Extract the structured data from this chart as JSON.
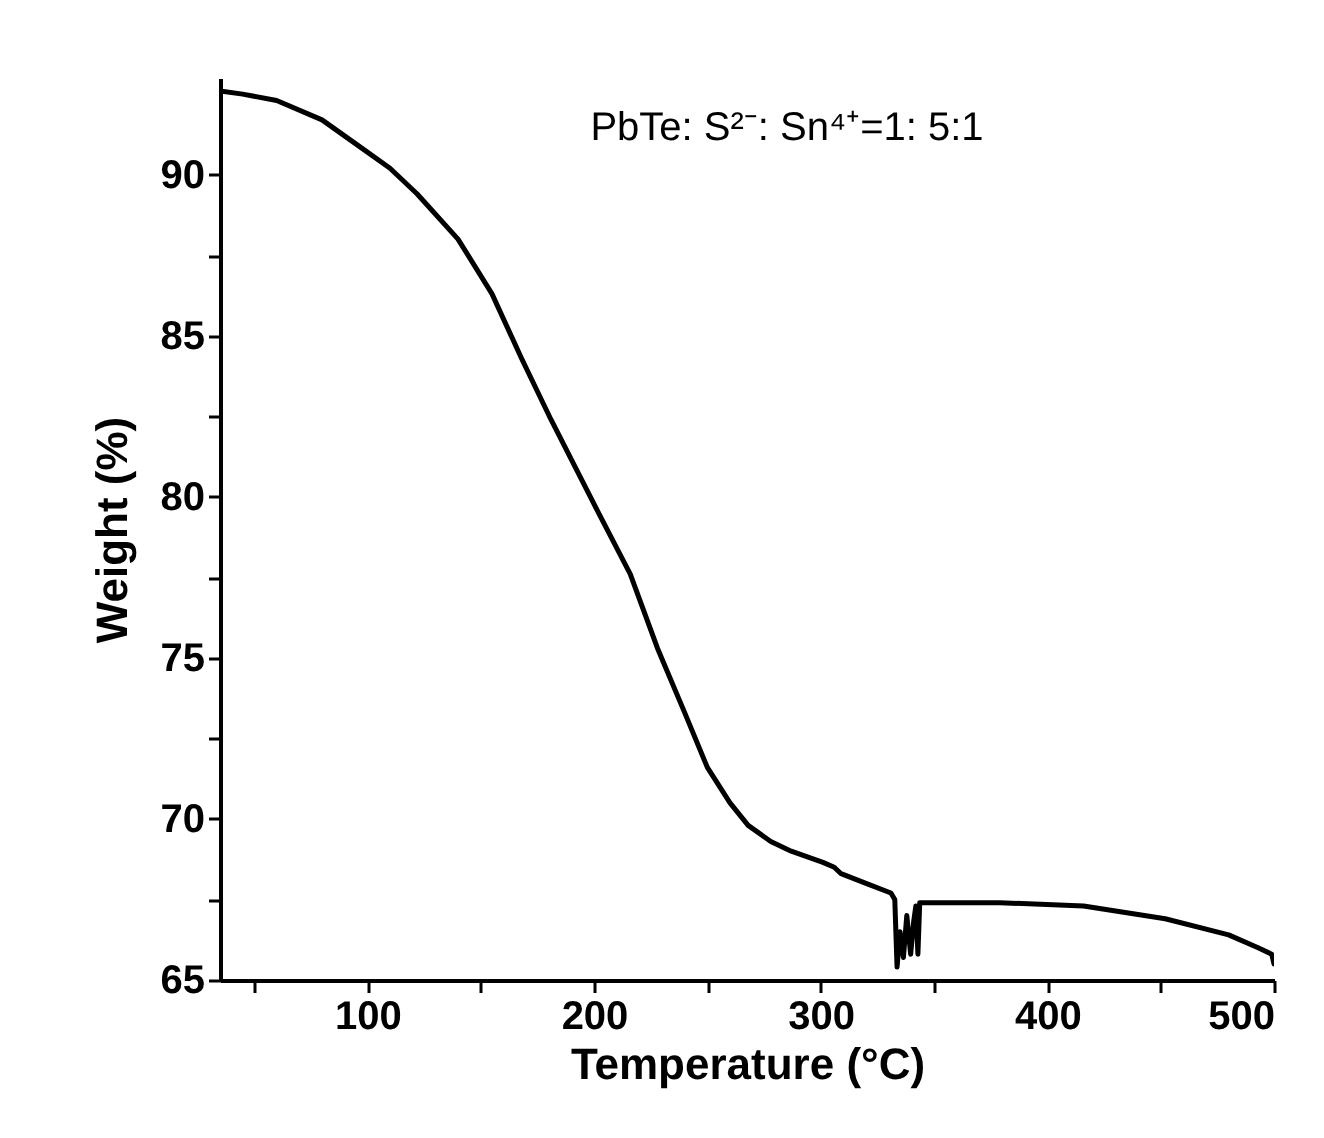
{
  "chart_data": {
    "type": "line",
    "title": "PbTe: S²⁻: Sn⁴⁺=1: 5:1",
    "xlabel": "Temperature (°C)",
    "ylabel": "Weight (%)",
    "xlim": [
      35,
      500
    ],
    "ylim": [
      65,
      93
    ],
    "xticks": [
      {
        "value": 50,
        "label": null
      },
      100,
      {
        "value": 150,
        "label": null
      },
      200,
      {
        "value": 250,
        "label": null
      },
      300,
      {
        "value": 350,
        "label": null
      },
      400,
      {
        "value": 450,
        "label": null
      },
      500
    ],
    "yticks": [
      65,
      {
        "value": 67.5,
        "label": null
      },
      70,
      {
        "value": 72.5,
        "label": null
      },
      75,
      {
        "value": 77.5,
        "label": null
      },
      80,
      {
        "value": 82.5,
        "label": null
      },
      85,
      {
        "value": 87.5,
        "label": null
      },
      90
    ],
    "grid": false,
    "marker": "none",
    "line_style": "solid",
    "series": [
      {
        "color": "#000000",
        "x": [
          35,
          45,
          60,
          80,
          96,
          110,
          122,
          140,
          155,
          168,
          181,
          202,
          216,
          228,
          240,
          250,
          260,
          268,
          278,
          287,
          301,
          306,
          309,
          320,
          331,
          332.7,
          333.7,
          335,
          336.5,
          338,
          339.7,
          341,
          342,
          342.9,
          343.7,
          350,
          379,
          416,
          452,
          480,
          493,
          499,
          500
        ],
        "values": [
          92.6,
          92.5,
          92.3,
          91.7,
          90.9,
          90.2,
          89.4,
          88.0,
          86.3,
          84.3,
          82.4,
          79.5,
          77.6,
          75.3,
          73.3,
          71.6,
          70.5,
          69.8,
          69.3,
          69.0,
          68.65,
          68.5,
          68.3,
          68.0,
          67.7,
          67.5,
          65.4,
          66.5,
          65.7,
          67.0,
          65.8,
          66.8,
          67.3,
          65.8,
          67.4,
          67.4,
          67.4,
          67.3,
          66.9,
          66.4,
          66.0,
          65.8,
          65.5
        ]
      }
    ]
  }
}
